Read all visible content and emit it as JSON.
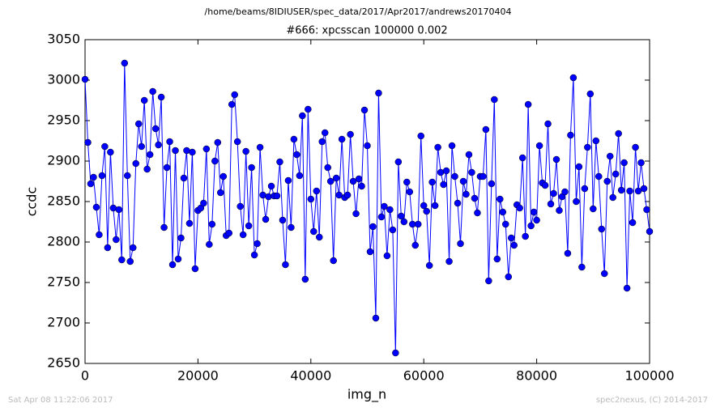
{
  "chart_data": {
    "type": "line",
    "suptitle": "/home/beams/8IDIUSER/spec_data/2017/Apr2017/andrews20170404",
    "title": "#666: xpcsscan 100000 0.002",
    "x_label": "img_n",
    "y_label": "ccdc",
    "footer_left": "Sat Apr 08 11:22:06 2017",
    "footer_right": "spec2nexus, (C) 2014-2017",
    "xlim": [
      0,
      100000
    ],
    "ylim": [
      2650,
      3050
    ],
    "xticks": [
      0,
      20000,
      40000,
      60000,
      80000,
      100000
    ],
    "yticks": [
      2650,
      2700,
      2750,
      2800,
      2850,
      2900,
      2950,
      3000,
      3050
    ],
    "markers": true,
    "x": [
      0,
      500,
      1000,
      1500,
      2000,
      2500,
      3000,
      3500,
      4000,
      4500,
      5000,
      5500,
      6000,
      6500,
      7000,
      7500,
      8000,
      8500,
      9000,
      9500,
      10000,
      10500,
      11000,
      11500,
      12000,
      12500,
      13000,
      13500,
      14000,
      14500,
      15000,
      15500,
      16000,
      16500,
      17000,
      17500,
      18000,
      18500,
      19000,
      19500,
      20000,
      20500,
      21000,
      21500,
      22000,
      22500,
      23000,
      23500,
      24000,
      24500,
      25000,
      25500,
      26000,
      26500,
      27000,
      27500,
      28000,
      28500,
      29000,
      29500,
      30000,
      30500,
      31000,
      31500,
      32000,
      32500,
      33000,
      33500,
      34000,
      34500,
      35000,
      35500,
      36000,
      36500,
      37000,
      37500,
      38000,
      38500,
      39000,
      39500,
      40000,
      40500,
      41000,
      41500,
      42000,
      42500,
      43000,
      43500,
      44000,
      44500,
      45000,
      45500,
      46000,
      46500,
      47000,
      47500,
      48000,
      48500,
      49000,
      49500,
      50000,
      50500,
      51000,
      51500,
      52000,
      52500,
      53000,
      53500,
      54000,
      54500,
      55000,
      55500,
      56000,
      56500,
      57000,
      57500,
      58000,
      58500,
      59000,
      59500,
      60000,
      60500,
      61000,
      61500,
      62000,
      62500,
      63000,
      63500,
      64000,
      64500,
      65000,
      65500,
      66000,
      66500,
      67000,
      67500,
      68000,
      68500,
      69000,
      69500,
      70000,
      70500,
      71000,
      71500,
      72000,
      72500,
      73000,
      73500,
      74000,
      74500,
      75000,
      75500,
      76000,
      76500,
      77000,
      77500,
      78000,
      78500,
      79000,
      79500,
      80000,
      80500,
      81000,
      81500,
      82000,
      82500,
      83000,
      83500,
      84000,
      84500,
      85000,
      85500,
      86000,
      86500,
      87000,
      87500,
      88000,
      88500,
      89000,
      89500,
      90000,
      90500,
      91000,
      91500,
      92000,
      92500,
      93000,
      93500,
      94000,
      94500,
      95000,
      95500,
      96000,
      96500,
      97000,
      97500,
      98000,
      98500,
      99000,
      99500,
      100000
    ],
    "series": [
      {
        "name": "ccdc",
        "color": "#0000ff",
        "values": [
          3001,
          2923,
          2872,
          2880,
          2843,
          2809,
          2882,
          2918,
          2793,
          2911,
          2842,
          2803,
          2840,
          2778,
          3021,
          2882,
          2776,
          2793,
          2897,
          2946,
          2918,
          2975,
          2890,
          2908,
          2986,
          2940,
          2920,
          2979,
          2818,
          2892,
          2924,
          2772,
          2913,
          2779,
          2805,
          2879,
          2913,
          2823,
          2911,
          2767,
          2839,
          2842,
          2848,
          2915,
          2797,
          2822,
          2900,
          2923,
          2861,
          2881,
          2808,
          2811,
          2970,
          2982,
          2924,
          2844,
          2809,
          2912,
          2820,
          2892,
          2784,
          2798,
          2917,
          2858,
          2828,
          2856,
          2869,
          2857,
          2857,
          2899,
          2827,
          2772,
          2876,
          2818,
          2927,
          2908,
          2882,
          2956,
          2754,
          2964,
          2853,
          2813,
          2863,
          2806,
          2924,
          2935,
          2892,
          2875,
          2777,
          2879,
          2858,
          2927,
          2855,
          2858,
          2933,
          2875,
          2835,
          2878,
          2869,
          2963,
          2919,
          2788,
          2819,
          2706,
          2984,
          2831,
          2844,
          2783,
          2840,
          2815,
          2663,
          2899,
          2832,
          2825,
          2874,
          2862,
          2822,
          2796,
          2822,
          2931,
          2845,
          2838,
          2771,
          2874,
          2845,
          2917,
          2886,
          2871,
          2888,
          2776,
          2919,
          2881,
          2848,
          2798,
          2875,
          2859,
          2908,
          2886,
          2854,
          2836,
          2881,
          2881,
          2939,
          2752,
          2872,
          2976,
          2779,
          2853,
          2837,
          2822,
          2757,
          2805,
          2796,
          2846,
          2842,
          2904,
          2807,
          2970,
          2820,
          2837,
          2827,
          2919,
          2873,
          2870,
          2946,
          2847,
          2860,
          2902,
          2839,
          2856,
          2862,
          2786,
          2932,
          3003,
          2850,
          2893,
          2769,
          2866,
          2917,
          2983,
          2841,
          2925,
          2881,
          2816,
          2761,
          2875,
          2906,
          2855,
          2884,
          2934,
          2864,
          2898,
          2743,
          2863,
          2824,
          2917,
          2863,
          2898,
          2866,
          2840,
          2813
        ]
      }
    ]
  }
}
